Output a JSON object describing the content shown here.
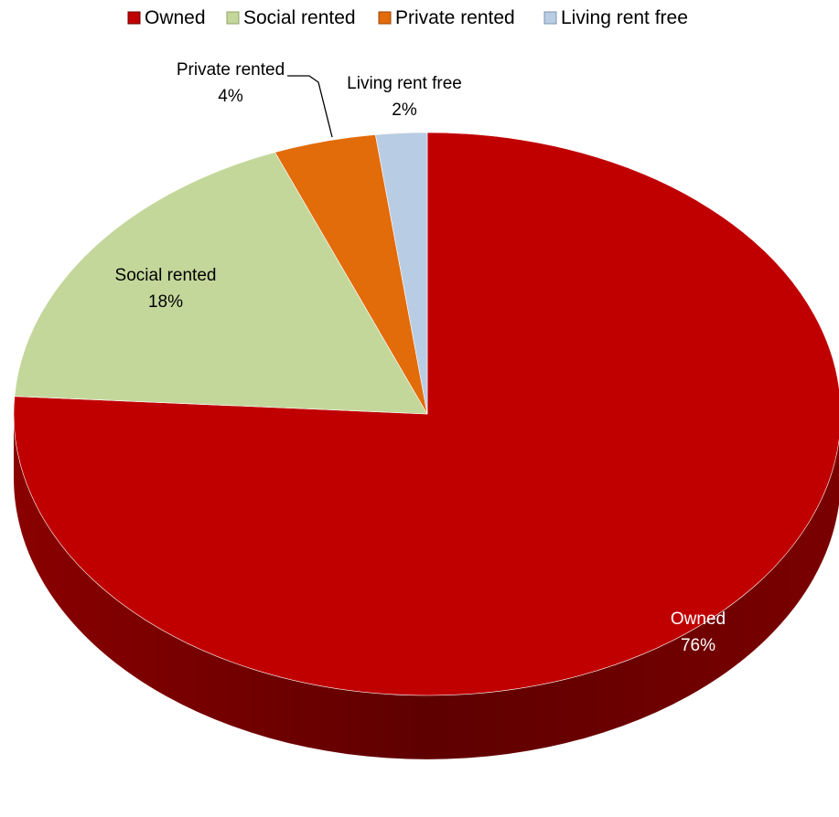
{
  "chart_data": {
    "type": "pie",
    "style": "3d",
    "legend_position": "top",
    "start_angle": "12 o'clock, clockwise",
    "slices": [
      {
        "label": "Owned",
        "value": 76,
        "value_label": "76%",
        "color": "#C00000",
        "shade": "#6E0000"
      },
      {
        "label": "Social rented",
        "value": 18,
        "value_label": "18%",
        "color": "#C4D79B",
        "shade": "#8FA06A"
      },
      {
        "label": "Private rented",
        "value": 4,
        "value_label": "4%",
        "color": "#E26B0A",
        "shade": "#9C4606"
      },
      {
        "label": "Living rent free",
        "value": 2,
        "value_label": "2%",
        "color": "#B8CCE4",
        "shade": "#7F93AB"
      }
    ]
  }
}
